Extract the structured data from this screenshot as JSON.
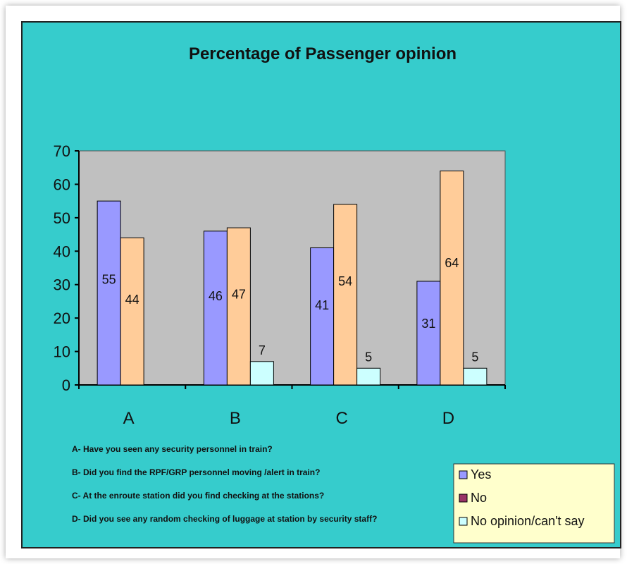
{
  "chart_data": {
    "type": "bar",
    "title": "Percentage of Passenger opinion",
    "xlabel": "",
    "ylabel": "",
    "ylim": [
      0,
      70
    ],
    "yticks": [
      "0",
      "10",
      "20",
      "30",
      "40",
      "50",
      "60",
      "70"
    ],
    "categories": [
      "A",
      "B",
      "C",
      "D"
    ],
    "series": [
      {
        "name": "Yes",
        "color": "#9999ff",
        "values": [
          55,
          46,
          41,
          31
        ],
        "labels": [
          "55",
          "46",
          "41",
          "31"
        ]
      },
      {
        "name": "No",
        "color": "#ffcc99",
        "values": [
          44,
          47,
          54,
          64
        ],
        "labels": [
          "44",
          "47",
          "54",
          "64"
        ]
      },
      {
        "name": "No opinion/can't say",
        "color": "#ccffff",
        "values": [
          0,
          7,
          5,
          5
        ],
        "labels": [
          "",
          "7",
          "5",
          "5"
        ]
      }
    ],
    "legend": {
      "position": "bottom-right",
      "items": [
        {
          "label": "Yes",
          "color": "#9999ff"
        },
        {
          "label": "No",
          "color": "#993366"
        },
        {
          "label": "No opinion/can't say",
          "color": "#ccffff"
        }
      ]
    },
    "grid": false,
    "plot_background": "#c0c0c0"
  },
  "footnotes": [
    "A- Have you seen any security personnel in train?",
    "B- Did you find the RPF/GRP personnel moving /alert in train?",
    "C- At the enroute station did you find checking at the stations?",
    "D- Did you see any random checking of luggage at station by security staff?"
  ]
}
